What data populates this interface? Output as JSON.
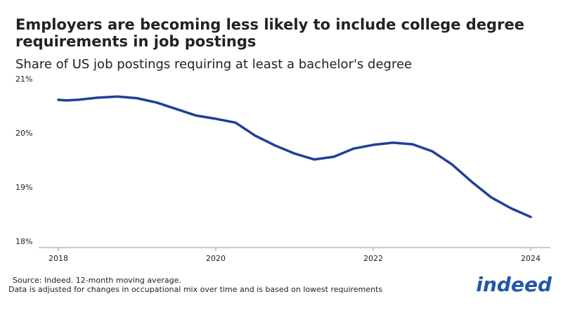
{
  "chart_data": {
    "type": "line",
    "title": "Employers are becoming less likely to include college degree requirements in job postings",
    "subtitle": "Share of US job postings requiring at least a bachelor's degree",
    "source": "Source: Indeed. 12-month moving average.",
    "note": "Data is adjusted for changes in occupational mix over time and is based on lowest requirements",
    "logo": "indeed",
    "x": [
      2018,
      2018.1,
      2018.25,
      2018.5,
      2018.75,
      2019,
      2019.25,
      2019.5,
      2019.75,
      2020,
      2020.25,
      2020.5,
      2020.75,
      2021,
      2021.25,
      2021.5,
      2021.75,
      2022,
      2022.25,
      2022.5,
      2022.75,
      2023,
      2023.25,
      2023.5,
      2023.75,
      2024
    ],
    "series": [
      {
        "name": "Bachelor's degree share",
        "color": "#1f3f99",
        "values": [
          20.61,
          20.6,
          20.61,
          20.65,
          20.67,
          20.64,
          20.56,
          20.44,
          20.32,
          20.26,
          20.19,
          19.95,
          19.77,
          19.62,
          19.51,
          19.56,
          19.71,
          19.78,
          19.82,
          19.79,
          19.66,
          19.42,
          19.1,
          18.81,
          18.61,
          18.45
        ]
      }
    ],
    "xlim": [
      2017.75,
      2024.25
    ],
    "xticks": [
      2018,
      2020,
      2022,
      2024
    ],
    "ylim": [
      17.95,
      21.05
    ],
    "yticks": [
      {
        "value": 18,
        "label": "18%"
      },
      {
        "value": 19,
        "label": "19%"
      },
      {
        "value": 20,
        "label": "20%"
      },
      {
        "value": 21,
        "label": "21%"
      }
    ],
    "grid": false
  }
}
